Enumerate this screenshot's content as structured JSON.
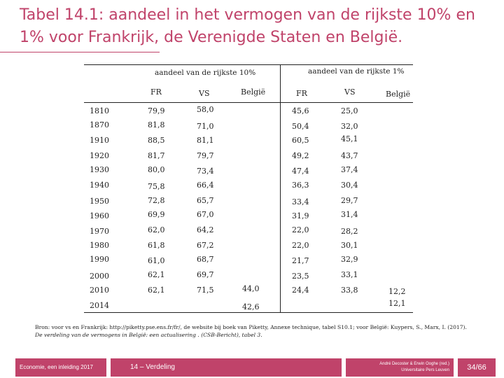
{
  "title": "Tabel 14.1: aandeel in het vermogen van de rijkste 10% en 1% voor Frankrijk, de Verenigde Staten en België.",
  "table": {
    "group_10": "aandeel van de rijkste 10%",
    "group_1": "aandeel van de rijkste 1%",
    "col_fr": "FR",
    "col_vs": "VS",
    "col_be": "België",
    "rows": [
      {
        "year": "1810",
        "fr10": "79,9",
        "vs10": "58,0",
        "be10": "",
        "fr1": "45,6",
        "vs1": "25,0",
        "be1": ""
      },
      {
        "year": "1870",
        "fr10": "81,8",
        "vs10": "71,0",
        "be10": "",
        "fr1": "50,4",
        "vs1": "32,0",
        "be1": ""
      },
      {
        "year": "1910",
        "fr10": "88,5",
        "vs10": "81,1",
        "be10": "",
        "fr1": "60,5",
        "vs1": "45,1",
        "be1": ""
      },
      {
        "year": "1920",
        "fr10": "81,7",
        "vs10": "79,7",
        "be10": "",
        "fr1": "49,2",
        "vs1": "43,7",
        "be1": ""
      },
      {
        "year": "1930",
        "fr10": "80,0",
        "vs10": "73,4",
        "be10": "",
        "fr1": "47,4",
        "vs1": "37,4",
        "be1": ""
      },
      {
        "year": "1940",
        "fr10": "75,8",
        "vs10": "66,4",
        "be10": "",
        "fr1": "36,3",
        "vs1": "30,4",
        "be1": ""
      },
      {
        "year": "1950",
        "fr10": "72,8",
        "vs10": "65,7",
        "be10": "",
        "fr1": "33,4",
        "vs1": "29,7",
        "be1": ""
      },
      {
        "year": "1960",
        "fr10": "69,9",
        "vs10": "67,0",
        "be10": "",
        "fr1": "31,9",
        "vs1": "31,4",
        "be1": ""
      },
      {
        "year": "1970",
        "fr10": "62,0",
        "vs10": "64,2",
        "be10": "",
        "fr1": "22,0",
        "vs1": "28,2",
        "be1": ""
      },
      {
        "year": "1980",
        "fr10": "61,8",
        "vs10": "67,2",
        "be10": "",
        "fr1": "22,0",
        "vs1": "30,1",
        "be1": ""
      },
      {
        "year": "1990",
        "fr10": "61,0",
        "vs10": "68,7",
        "be10": "",
        "fr1": "21,7",
        "vs1": "32,9",
        "be1": ""
      },
      {
        "year": "2000",
        "fr10": "62,1",
        "vs10": "69,7",
        "be10": "",
        "fr1": "23,5",
        "vs1": "33,1",
        "be1": ""
      },
      {
        "year": "2010",
        "fr10": "62,1",
        "vs10": "71,5",
        "be10": "44,0",
        "fr1": "24,4",
        "vs1": "33,8",
        "be1": "12,2"
      },
      {
        "year": "2014",
        "fr10": "",
        "vs10": "",
        "be10": "42,6",
        "fr1": "",
        "vs1": "",
        "be1": "12,1"
      }
    ]
  },
  "source": {
    "line1": "Bron: voor vs en Frankrijk: http://piketty.pse.ens.fr/fr/, de website bij boek van Piketty, Annexe technique, tabel S10.1; voor België: Kuypers, S., Marx, I. (2017).",
    "line2": "De verdeling van de vermogens in België:    een actualisering . (CSB-Bericht), tabel 3."
  },
  "footer": {
    "left": "Economie, een inleiding 2017",
    "middle": "14 – Verdeling",
    "right_line1": "André Decoster & Erwin Ooghe (red.)",
    "right_line2": "Universitaire Pers Leuven",
    "page": "34/66"
  },
  "colors": {
    "accent": "#c0436a",
    "text": "#222222"
  }
}
